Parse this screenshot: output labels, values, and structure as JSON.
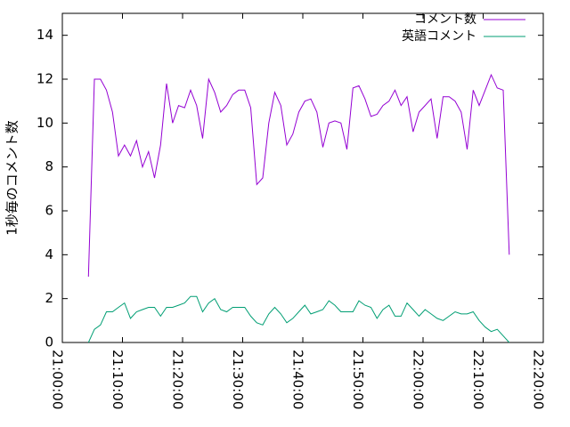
{
  "chart_data": {
    "type": "line",
    "ylabel": "1秒毎のコメント数",
    "x": [
      "21:04:20",
      "21:05:20",
      "21:06:20",
      "21:07:20",
      "21:08:20",
      "21:09:20",
      "21:10:20",
      "21:11:20",
      "21:12:20",
      "21:13:20",
      "21:14:20",
      "21:15:20",
      "21:16:20",
      "21:17:20",
      "21:18:20",
      "21:19:20",
      "21:20:20",
      "21:21:20",
      "21:22:20",
      "21:23:20",
      "21:24:20",
      "21:25:20",
      "21:26:20",
      "21:27:20",
      "21:28:20",
      "21:29:20",
      "21:30:20",
      "21:31:20",
      "21:32:20",
      "21:33:20",
      "21:34:20",
      "21:35:20",
      "21:36:20",
      "21:37:20",
      "21:38:20",
      "21:39:20",
      "21:40:20",
      "21:41:20",
      "21:42:20",
      "21:43:20",
      "21:44:20",
      "21:45:20",
      "21:46:20",
      "21:47:20",
      "21:48:20",
      "21:49:20",
      "21:50:20",
      "21:51:20",
      "21:52:20",
      "21:53:20",
      "21:54:20",
      "21:55:20",
      "21:56:20",
      "21:57:20",
      "21:58:20",
      "21:59:20",
      "22:00:20",
      "22:01:20",
      "22:02:20",
      "22:03:20",
      "22:04:20",
      "22:05:20",
      "22:06:20",
      "22:07:20",
      "22:08:20",
      "22:09:20",
      "22:10:20",
      "22:11:20",
      "22:12:20",
      "22:13:20",
      "22:14:20"
    ],
    "series": [
      {
        "name": "コメント数",
        "color": "#9400d3",
        "values": [
          3.0,
          12.0,
          12.0,
          11.5,
          10.5,
          8.5,
          9.0,
          8.5,
          9.2,
          8.0,
          8.7,
          7.5,
          9.0,
          11.8,
          10.0,
          10.8,
          10.7,
          11.5,
          10.8,
          9.3,
          12.0,
          11.4,
          10.5,
          10.8,
          11.3,
          11.5,
          11.5,
          10.7,
          7.2,
          7.5,
          10.0,
          11.4,
          10.8,
          9.0,
          9.5,
          10.5,
          11.0,
          11.1,
          10.5,
          8.9,
          10.0,
          10.1,
          10.0,
          8.8,
          11.6,
          11.7,
          11.1,
          10.3,
          10.4,
          10.8,
          11.0,
          11.5,
          10.8,
          11.2,
          9.6,
          10.5,
          10.8,
          11.1,
          9.3,
          11.2,
          11.2,
          11.0,
          10.5,
          8.8,
          11.5,
          10.8,
          11.5,
          12.2,
          11.6,
          11.5,
          4.0
        ]
      },
      {
        "name": "英語コメント",
        "color": "#009e73",
        "values": [
          0,
          0.6,
          0.8,
          1.4,
          1.4,
          1.6,
          1.8,
          1.1,
          1.4,
          1.5,
          1.6,
          1.6,
          1.2,
          1.6,
          1.6,
          1.7,
          1.8,
          2.1,
          2.1,
          1.4,
          1.8,
          2.0,
          1.5,
          1.4,
          1.6,
          1.6,
          1.6,
          1.2,
          0.9,
          0.8,
          1.3,
          1.6,
          1.3,
          0.9,
          1.1,
          1.4,
          1.7,
          1.3,
          1.4,
          1.5,
          1.9,
          1.7,
          1.4,
          1.4,
          1.4,
          1.9,
          1.7,
          1.6,
          1.1,
          1.5,
          1.7,
          1.2,
          1.2,
          1.8,
          1.5,
          1.2,
          1.5,
          1.3,
          1.1,
          1.0,
          1.2,
          1.4,
          1.3,
          1.3,
          1.4,
          1.0,
          0.7,
          0.5,
          0.6,
          0.3,
          0
        ]
      }
    ],
    "xlim": [
      "21:00:00",
      "22:20:00"
    ],
    "xticks": [
      "21:00:00",
      "21:10:00",
      "21:20:00",
      "21:30:00",
      "21:40:00",
      "21:50:00",
      "22:00:00",
      "22:10:00",
      "22:20:00"
    ],
    "ylim": [
      0,
      15
    ],
    "yticks": [
      0,
      2,
      4,
      6,
      8,
      10,
      12,
      14
    ],
    "legend": "top-right"
  }
}
